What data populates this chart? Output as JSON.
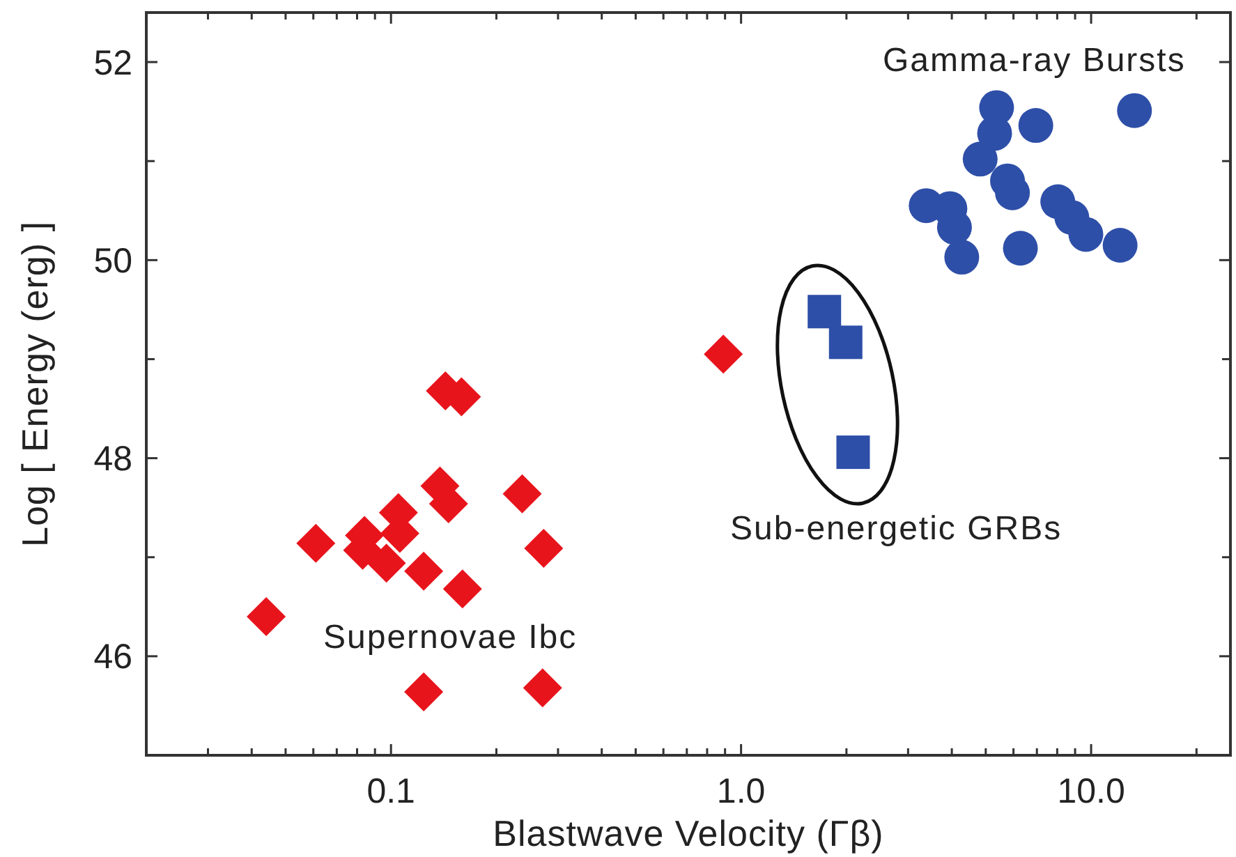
{
  "chart_data": {
    "type": "scatter",
    "xlabel": "Blastwave Velocity (Γβ)",
    "ylabel": "Log [ Energy (erg) ]",
    "log": "x",
    "xlim": [
      0.02,
      25
    ],
    "ylim": [
      45,
      52.5
    ],
    "xticks": [
      {
        "value": 0.02,
        "label": null
      },
      {
        "value": 0.03,
        "label": null
      },
      {
        "value": 0.04,
        "label": null
      },
      {
        "value": 0.05,
        "label": null
      },
      {
        "value": 0.06,
        "label": null
      },
      {
        "value": 0.07,
        "label": null
      },
      {
        "value": 0.08,
        "label": null
      },
      {
        "value": 0.09,
        "label": null
      },
      {
        "value": 0.1,
        "label": "0.1"
      },
      {
        "value": 0.2,
        "label": null
      },
      {
        "value": 0.3,
        "label": null
      },
      {
        "value": 0.4,
        "label": null
      },
      {
        "value": 0.5,
        "label": null
      },
      {
        "value": 0.6,
        "label": null
      },
      {
        "value": 0.7,
        "label": null
      },
      {
        "value": 0.8,
        "label": null
      },
      {
        "value": 0.9,
        "label": null
      },
      {
        "value": 1,
        "label": "1.0"
      },
      {
        "value": 2,
        "label": null
      },
      {
        "value": 3,
        "label": null
      },
      {
        "value": 4,
        "label": null
      },
      {
        "value": 5,
        "label": null
      },
      {
        "value": 6,
        "label": null
      },
      {
        "value": 7,
        "label": null
      },
      {
        "value": 8,
        "label": null
      },
      {
        "value": 9,
        "label": null
      },
      {
        "value": 10,
        "label": "10.0"
      },
      {
        "value": 20,
        "label": null
      }
    ],
    "yticks": [
      46,
      {
        "value": 47,
        "label": null
      },
      48,
      {
        "value": 49,
        "label": null
      },
      50,
      {
        "value": 51,
        "label": null
      },
      52
    ],
    "grid": false,
    "annotations": [
      "Gamma-ray Bursts",
      "Supernovae Ibc",
      "Sub-energetic GRBs"
    ],
    "series": [
      {
        "color": "#e8141c",
        "marker": "diamond",
        "x": [
          0.044,
          0.061,
          0.084,
          0.083,
          0.097,
          0.105,
          0.106,
          0.124,
          0.138,
          0.146,
          0.16,
          0.237,
          0.273,
          0.124,
          0.271,
          0.143,
          0.159,
          0.89
        ],
        "values": [
          46.4,
          47.14,
          47.22,
          47.07,
          46.94,
          47.45,
          47.24,
          46.86,
          47.72,
          47.54,
          46.68,
          47.64,
          47.09,
          45.64,
          45.68,
          48.68,
          48.62,
          49.05
        ]
      },
      {
        "color": "#2e4fa8",
        "marker": "square",
        "x": [
          1.73,
          1.99,
          2.09
        ],
        "values": [
          49.48,
          49.17,
          48.06
        ]
      },
      {
        "color": "#2e4fa8",
        "marker": "circle",
        "x": [
          5.37,
          5.3,
          6.95,
          13.3,
          4.82,
          5.77,
          5.96,
          3.38,
          3.95,
          4.07,
          4.27,
          6.28,
          8.03,
          8.81,
          9.66,
          12.1
        ],
        "values": [
          51.54,
          51.28,
          51.36,
          51.51,
          51.02,
          50.8,
          50.68,
          50.55,
          50.52,
          50.33,
          50.03,
          50.12,
          50.59,
          50.43,
          50.26,
          50.15
        ]
      }
    ]
  }
}
